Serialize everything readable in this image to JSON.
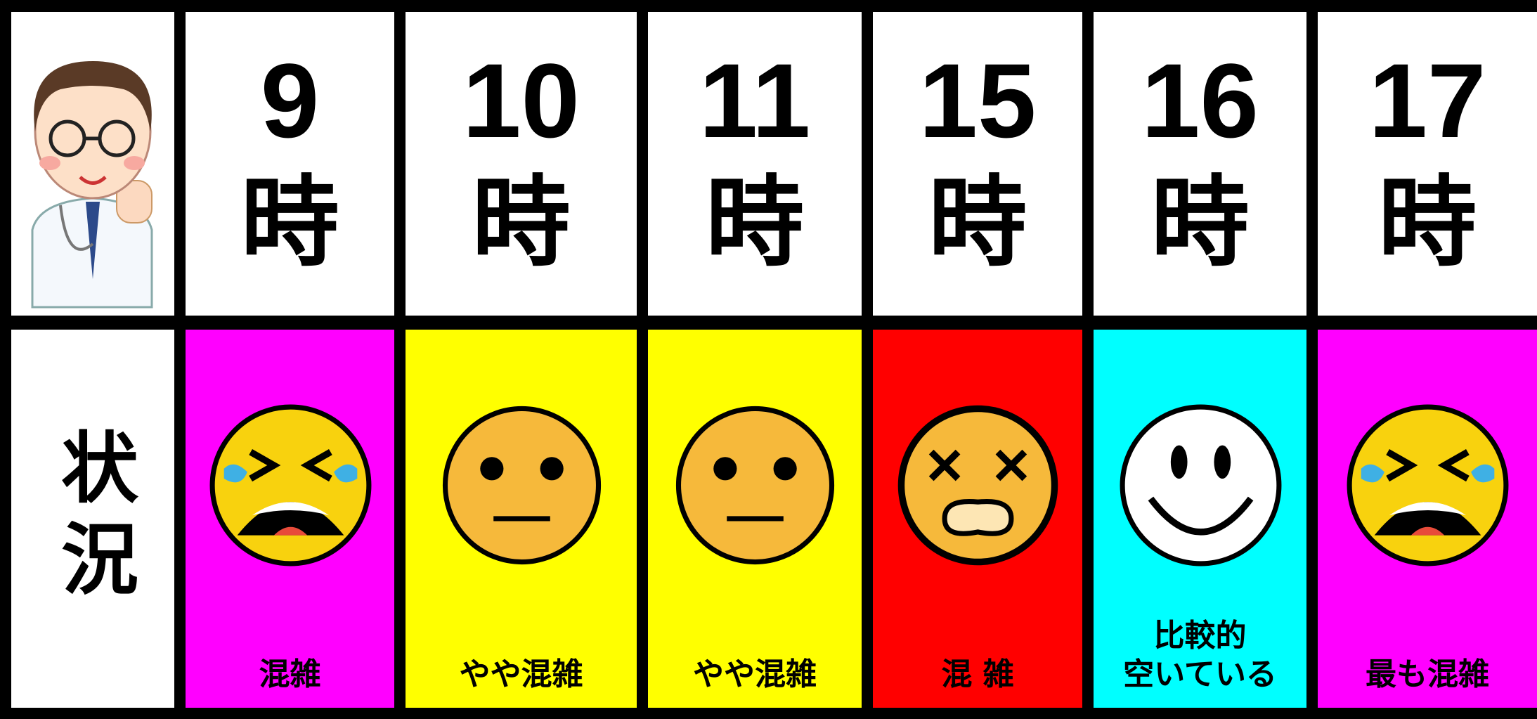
{
  "row_label": "状況",
  "columns": [
    {
      "hour": "9",
      "unit": "時",
      "status": "混雑",
      "color": "#ff00ff"
    },
    {
      "hour": "10",
      "unit": "時",
      "status": "やや混雑",
      "color": "#ffff00"
    },
    {
      "hour": "11",
      "unit": "時",
      "status": "やや混雑",
      "color": "#ffff00"
    },
    {
      "hour": "15",
      "unit": "時",
      "status": "混 雑",
      "color": "#ff0000"
    },
    {
      "hour": "16",
      "unit": "時",
      "status": "比較的\n空いている",
      "color": "#00ffff"
    },
    {
      "hour": "17",
      "unit": "時",
      "status": "最も混雑",
      "color": "#ff00ff"
    }
  ]
}
